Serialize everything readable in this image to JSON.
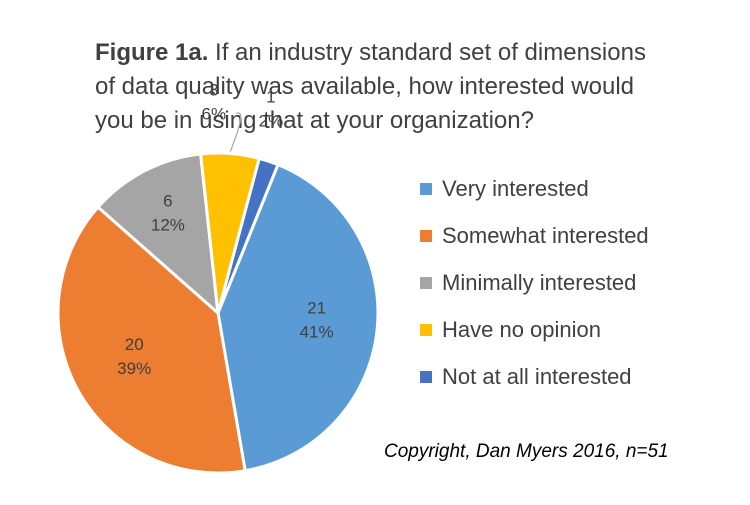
{
  "chart_data": {
    "type": "pie",
    "title_prefix": "Figure 1a.",
    "title_lines": [
      " If an industry standard set of dimensions",
      "of data quality was available, how interested would",
      "you be in using that at your organization?"
    ],
    "slices": [
      {
        "name": "Very interested",
        "count": 21,
        "percent_label": "41%",
        "color": "#5B9BD5"
      },
      {
        "name": "Somewhat interested",
        "count": 20,
        "percent_label": "39%",
        "color": "#ED7D31"
      },
      {
        "name": "Minimally interested",
        "count": 6,
        "percent_label": "12%",
        "color": "#A5A5A5"
      },
      {
        "name": "Have no opinion",
        "count": 3,
        "percent_label": "6%",
        "color": "#FFC000"
      },
      {
        "name": "Not at all interested",
        "count": 1,
        "percent_label": "2%",
        "color": "#4472C4"
      }
    ],
    "start_angle_deg": 22,
    "direction": "clockwise",
    "legend_position": "right",
    "footnote": "Copyright, Dan Myers 2016, n=51"
  }
}
